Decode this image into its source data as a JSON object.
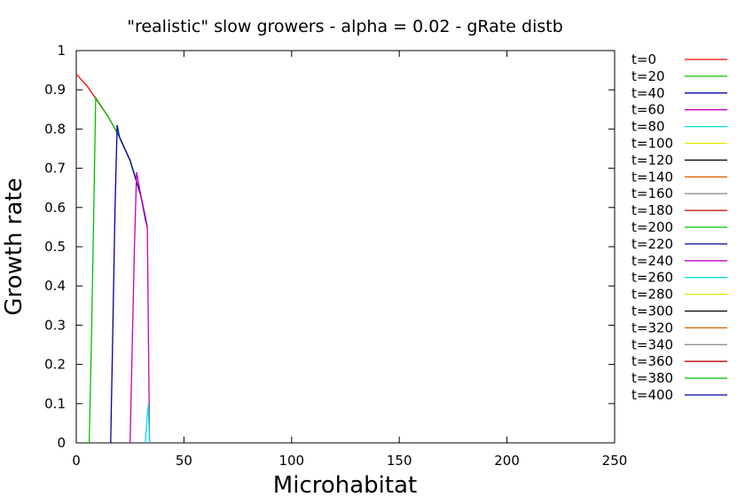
{
  "chart_data": {
    "type": "line",
    "title": "\"realistic\" slow growers - alpha = 0.02 - gRate distb",
    "xlabel": "Microhabitat",
    "ylabel": "Growth rate",
    "xlim": [
      0,
      250
    ],
    "ylim": [
      0,
      1
    ],
    "xticks": [
      "0",
      "50",
      "100",
      "150",
      "200",
      "250"
    ],
    "yticks": [
      "0",
      "0.1",
      "0.2",
      "0.3",
      "0.4",
      "0.5",
      "0.6",
      "0.7",
      "0.8",
      "0.9",
      "1"
    ],
    "grid": false,
    "legend_position": "right",
    "series": [
      {
        "name": "t=0",
        "color": "#ff0000",
        "x": [
          0,
          5,
          10,
          15,
          20,
          25,
          30,
          33
        ],
        "y": [
          0.94,
          0.91,
          0.87,
          0.83,
          0.78,
          0.72,
          0.63,
          0.55
        ]
      },
      {
        "name": "t=20",
        "color": "#00c000",
        "x": [
          6,
          7,
          8,
          9,
          15,
          20,
          25,
          30,
          33
        ],
        "y": [
          0.0,
          0.25,
          0.55,
          0.88,
          0.83,
          0.78,
          0.72,
          0.63,
          0.55
        ]
      },
      {
        "name": "t=40",
        "color": "#0000a0",
        "x": [
          16,
          17,
          18,
          19,
          20,
          25,
          30,
          33
        ],
        "y": [
          0.0,
          0.3,
          0.6,
          0.81,
          0.78,
          0.72,
          0.63,
          0.55
        ]
      },
      {
        "name": "t=60",
        "color": "#c000c0",
        "x": [
          25,
          26,
          27,
          28,
          30,
          32,
          33,
          34
        ],
        "y": [
          0.0,
          0.25,
          0.5,
          0.69,
          0.63,
          0.57,
          0.55,
          0.0
        ]
      },
      {
        "name": "t=80",
        "color": "#00e0e0",
        "x": [
          32,
          32.5,
          33,
          33.5,
          34
        ],
        "y": [
          0.0,
          0.03,
          0.07,
          0.1,
          0.0
        ]
      },
      {
        "name": "t=100",
        "color": "#e6e600",
        "x": [],
        "y": []
      },
      {
        "name": "t=120",
        "color": "#000000",
        "x": [],
        "y": []
      },
      {
        "name": "t=140",
        "color": "#e06000",
        "x": [],
        "y": []
      },
      {
        "name": "t=160",
        "color": "#909090",
        "x": [],
        "y": []
      },
      {
        "name": "t=180",
        "color": "#c00000",
        "x": [],
        "y": []
      },
      {
        "name": "t=200",
        "color": "#00c000",
        "x": [],
        "y": []
      },
      {
        "name": "t=220",
        "color": "#0000a0",
        "x": [],
        "y": []
      },
      {
        "name": "t=240",
        "color": "#c000c0",
        "x": [],
        "y": []
      },
      {
        "name": "t=260",
        "color": "#00e0e0",
        "x": [],
        "y": []
      },
      {
        "name": "t=280",
        "color": "#e6e600",
        "x": [],
        "y": []
      },
      {
        "name": "t=300",
        "color": "#000000",
        "x": [],
        "y": []
      },
      {
        "name": "t=320",
        "color": "#e06000",
        "x": [],
        "y": []
      },
      {
        "name": "t=340",
        "color": "#909090",
        "x": [],
        "y": []
      },
      {
        "name": "t=360",
        "color": "#c00000",
        "x": [],
        "y": []
      },
      {
        "name": "t=380",
        "color": "#00c000",
        "x": [],
        "y": []
      },
      {
        "name": "t=400",
        "color": "#0000a0",
        "x": [],
        "y": []
      }
    ]
  }
}
